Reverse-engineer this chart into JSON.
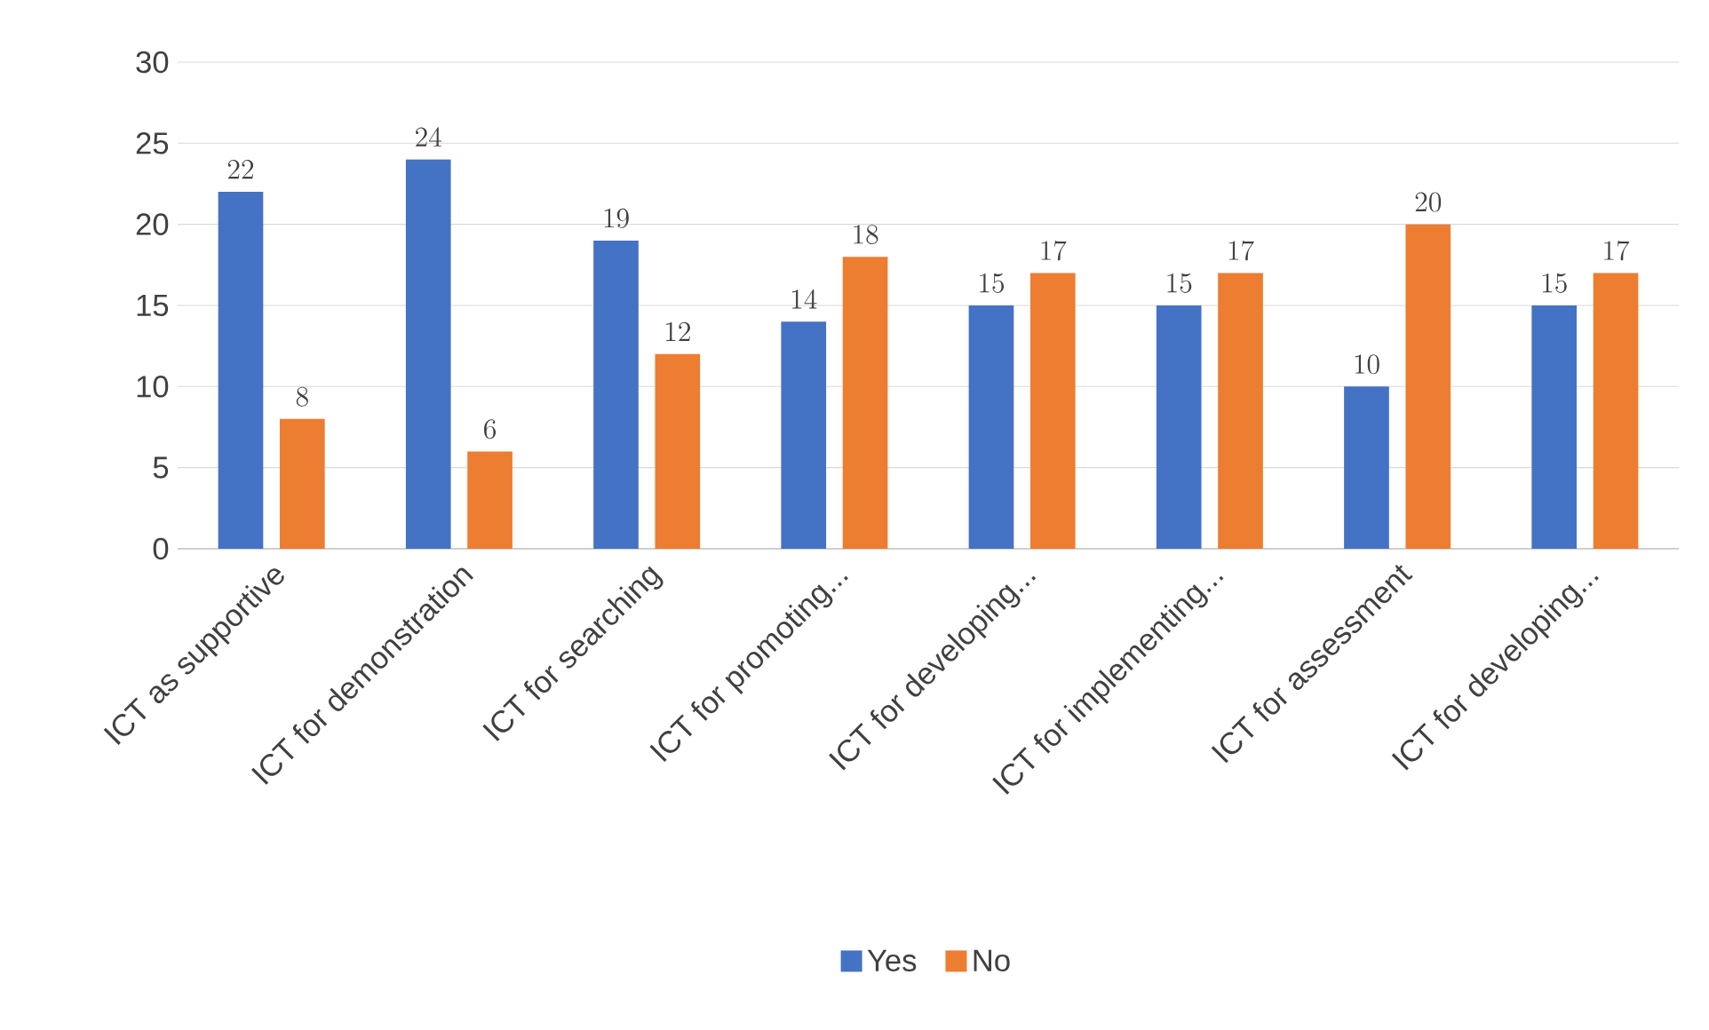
{
  "chart_data": {
    "type": "bar",
    "categories": [
      "ICT as supportive",
      "ICT for demonstration",
      "ICT for searching",
      "ICT for promoting...",
      "ICT for developing...",
      "ICT for implementing...",
      "ICT for assessment",
      "ICT for developing..."
    ],
    "series": [
      {
        "name": "Yes",
        "color": "#4472c4",
        "values": [
          22,
          24,
          19,
          14,
          15,
          15,
          10,
          15
        ]
      },
      {
        "name": "No",
        "color": "#ed7d31",
        "values": [
          8,
          6,
          12,
          18,
          17,
          17,
          20,
          17
        ]
      }
    ],
    "ylim": [
      0,
      30
    ],
    "yticks": [
      0,
      5,
      10,
      15,
      20,
      25,
      30
    ],
    "grid": "y",
    "legend": "bottom",
    "data_labels": true
  }
}
